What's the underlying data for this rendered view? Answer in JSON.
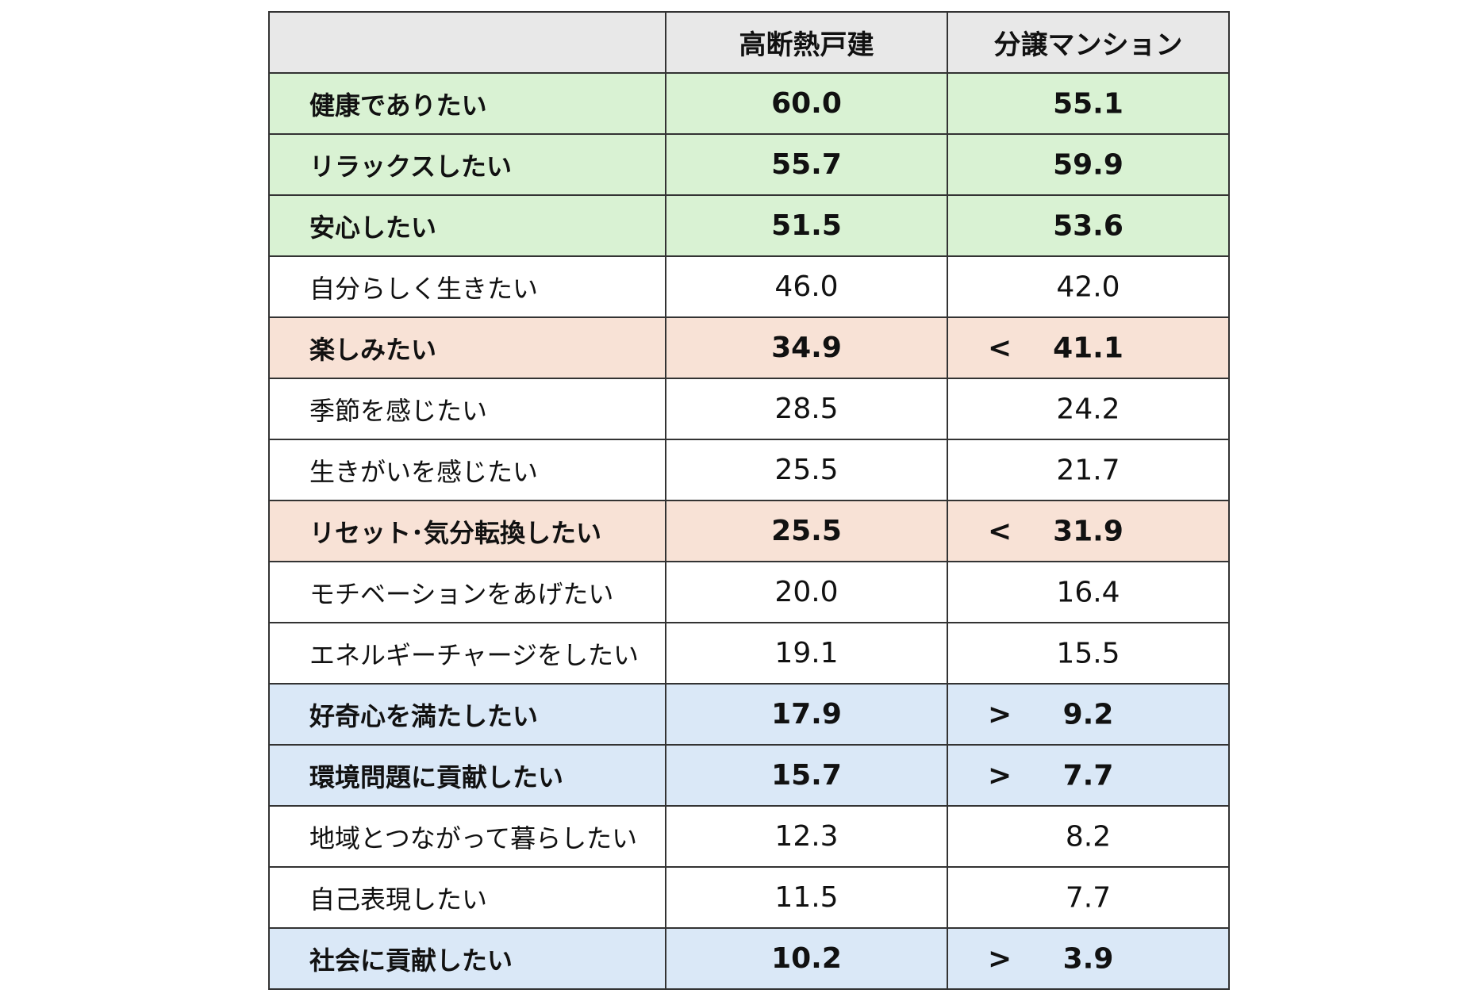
{
  "colors": {
    "header": "#e8e8e8",
    "green": "#d9f2d3",
    "orange": "#f8e2d6",
    "blue": "#dae8f7",
    "white": "#ffffff",
    "border": "#333333"
  },
  "chart_data": {
    "type": "table",
    "columns": [
      "",
      "高断熱戸建",
      "分譲マンション"
    ],
    "rows": [
      {
        "label": "健康でありたい",
        "a": "60.0",
        "b": "55.1",
        "cmp": "",
        "highlight": "green",
        "bold": true
      },
      {
        "label": "リラックスしたい",
        "a": "55.7",
        "b": "59.9",
        "cmp": "",
        "highlight": "green",
        "bold": true
      },
      {
        "label": "安心したい",
        "a": "51.5",
        "b": "53.6",
        "cmp": "",
        "highlight": "green",
        "bold": true
      },
      {
        "label": "自分らしく生きたい",
        "a": "46.0",
        "b": "42.0",
        "cmp": "",
        "highlight": "white",
        "bold": false
      },
      {
        "label": "楽しみたい",
        "a": "34.9",
        "b": "41.1",
        "cmp": "<",
        "highlight": "orange",
        "bold": true
      },
      {
        "label": "季節を感じたい",
        "a": "28.5",
        "b": "24.2",
        "cmp": "",
        "highlight": "white",
        "bold": false
      },
      {
        "label": "生きがいを感じたい",
        "a": "25.5",
        "b": "21.7",
        "cmp": "",
        "highlight": "white",
        "bold": false
      },
      {
        "label": "リセット･気分転換したい",
        "a": "25.5",
        "b": "31.9",
        "cmp": "<",
        "highlight": "orange",
        "bold": true
      },
      {
        "label": "モチベーションをあげたい",
        "a": "20.0",
        "b": "16.4",
        "cmp": "",
        "highlight": "white",
        "bold": false
      },
      {
        "label": "エネルギーチャージをしたい",
        "a": "19.1",
        "b": "15.5",
        "cmp": "",
        "highlight": "white",
        "bold": false
      },
      {
        "label": "好奇心を満たしたい",
        "a": "17.9",
        "b": "9.2",
        "cmp": ">",
        "highlight": "blue",
        "bold": true
      },
      {
        "label": "環境問題に貢献したい",
        "a": "15.7",
        "b": "7.7",
        "cmp": ">",
        "highlight": "blue",
        "bold": true
      },
      {
        "label": "地域とつながって暮らしたい",
        "a": "12.3",
        "b": "8.2",
        "cmp": "",
        "highlight": "white",
        "bold": false
      },
      {
        "label": "自己表現したい",
        "a": "11.5",
        "b": "7.7",
        "cmp": "",
        "highlight": "white",
        "bold": false
      },
      {
        "label": "社会に貢献したい",
        "a": "10.2",
        "b": "3.9",
        "cmp": ">",
        "highlight": "blue",
        "bold": true
      }
    ]
  }
}
